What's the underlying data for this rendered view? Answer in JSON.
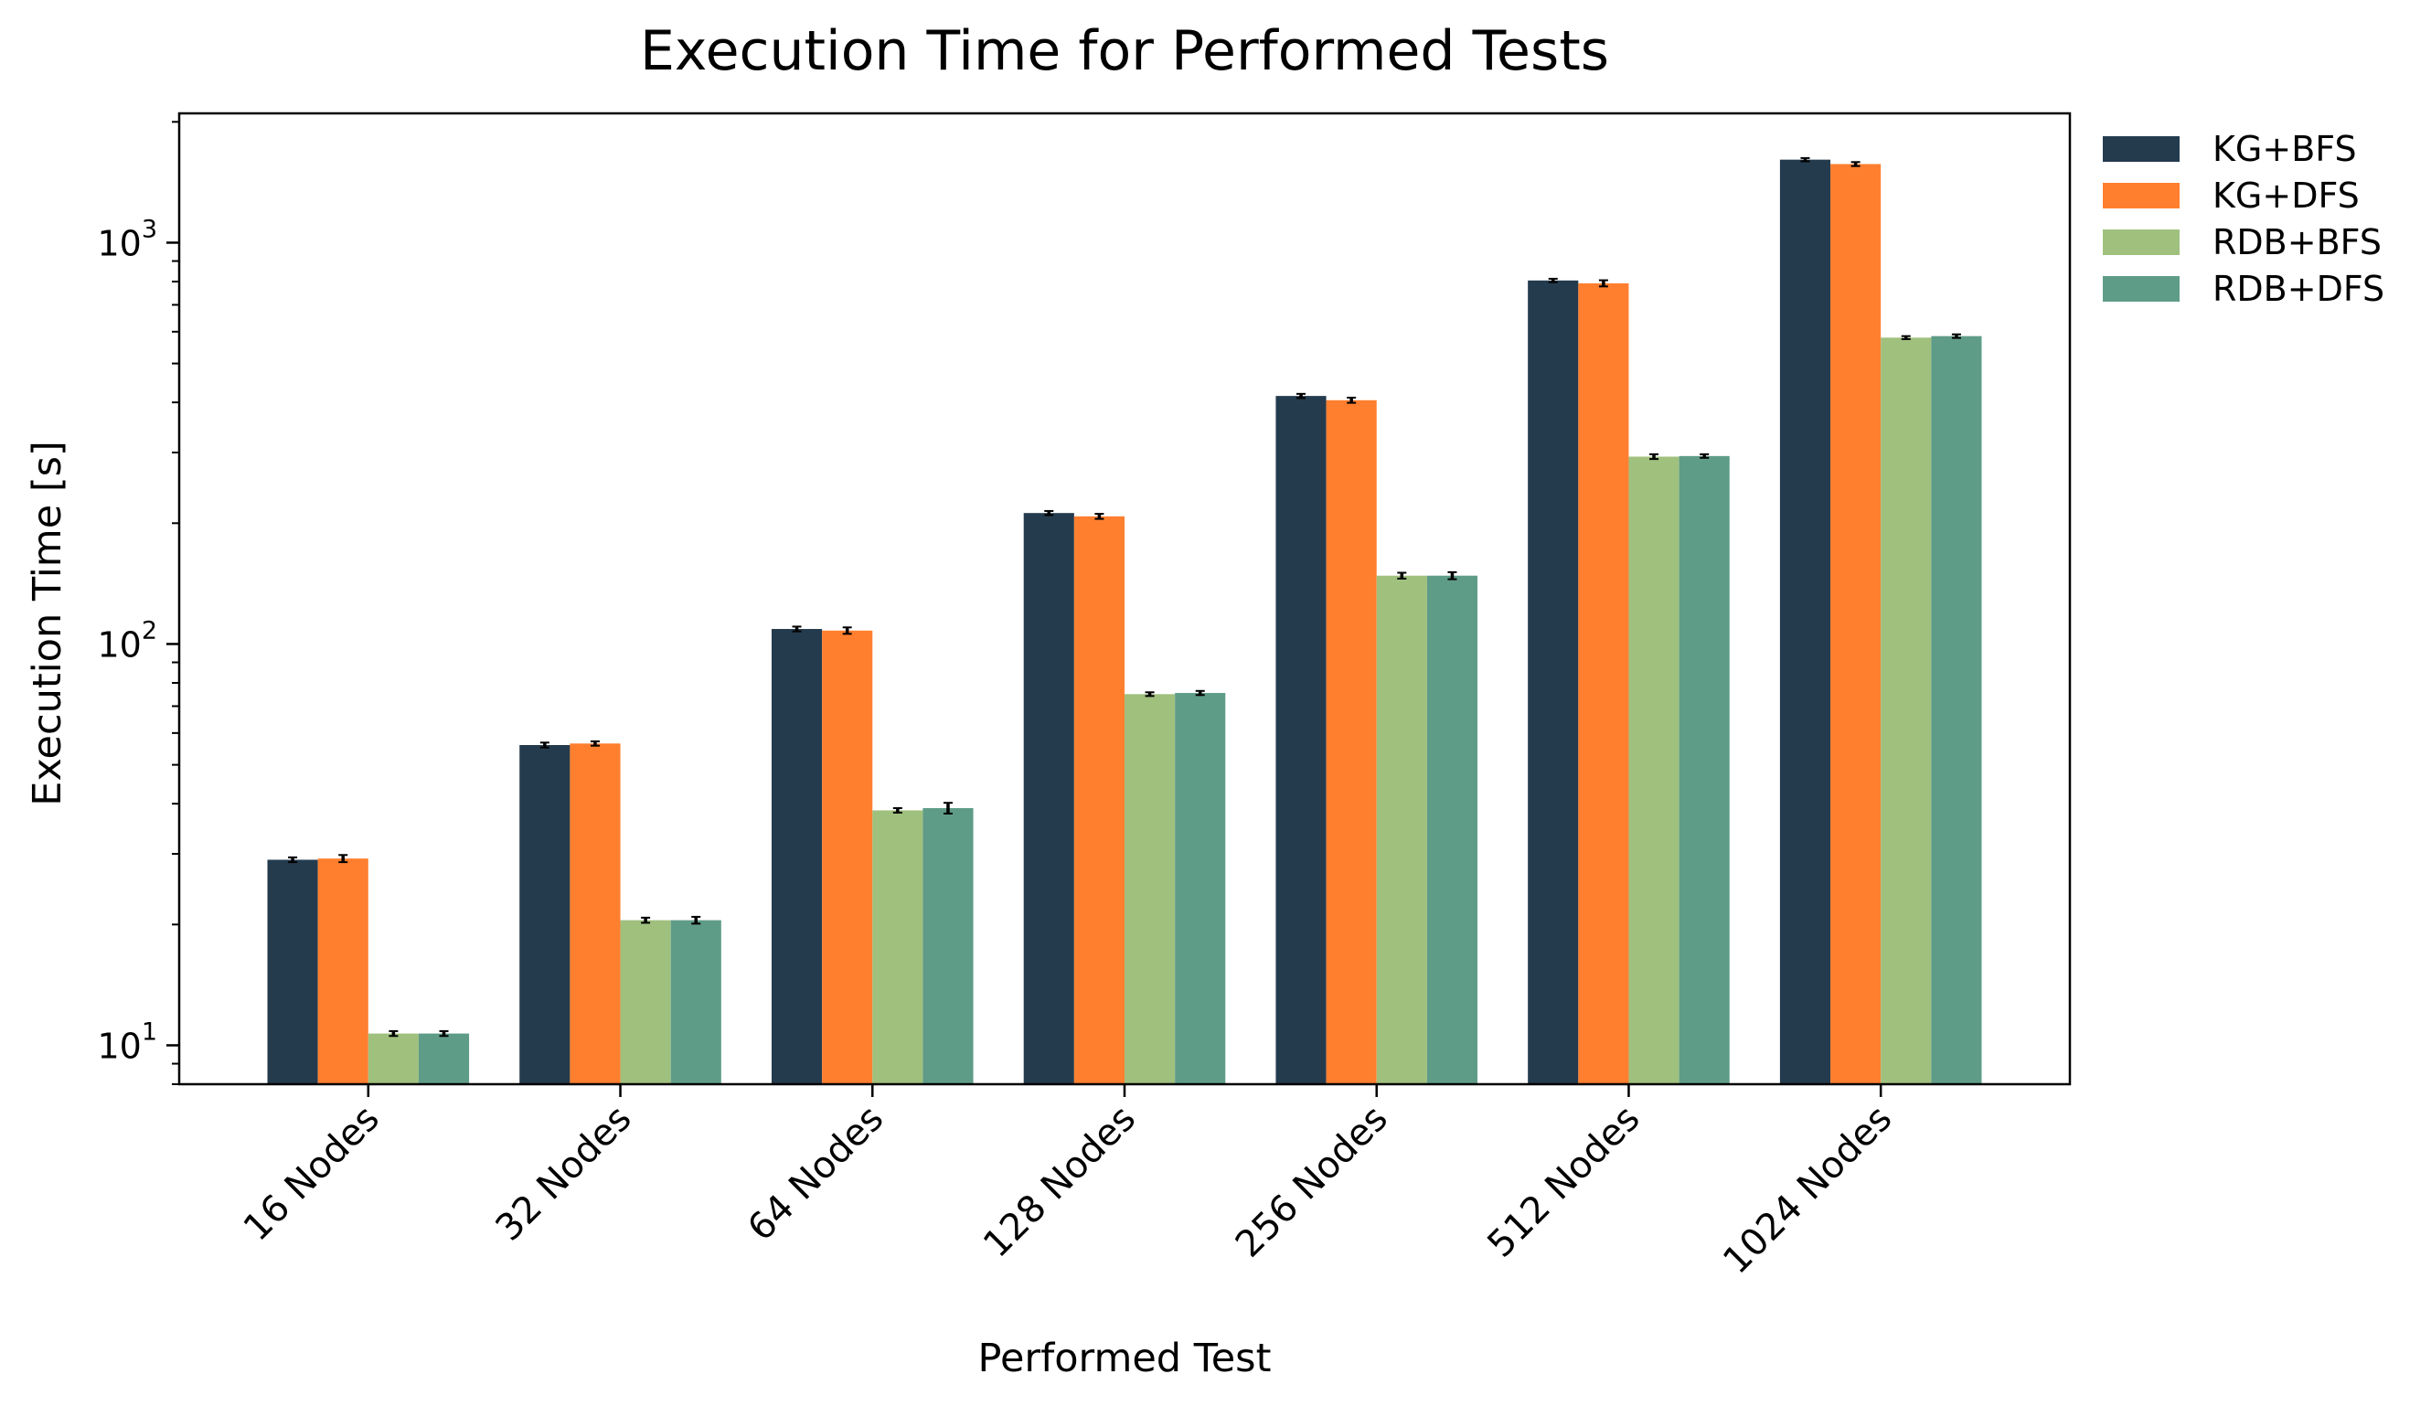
{
  "chart_data": {
    "type": "bar",
    "title": "Execution Time for Performed Tests",
    "xlabel": "Performed Test",
    "ylabel": "Execution Time [s]",
    "yscale": "log",
    "ylim": [
      8,
      2100
    ],
    "yticks": [
      {
        "base": "10",
        "exp": "1",
        "value": 10
      },
      {
        "base": "10",
        "exp": "2",
        "value": 100
      },
      {
        "base": "10",
        "exp": "3",
        "value": 1000
      }
    ],
    "categories": [
      "16 Nodes",
      "32 Nodes",
      "64 Nodes",
      "128 Nodes",
      "256 Nodes",
      "512 Nodes",
      "1024 Nodes"
    ],
    "legend_position": "outside top-right",
    "grid": false,
    "series": [
      {
        "name": "KG+BFS",
        "color": "#243b4e",
        "values": [
          29,
          56,
          109,
          212,
          415,
          805,
          1610
        ],
        "errors": [
          0.4,
          0.8,
          1.5,
          2.5,
          5,
          8,
          15
        ]
      },
      {
        "name": "KG+DFS",
        "color": "#ff7f2f",
        "values": [
          29.2,
          56.5,
          108,
          208,
          405,
          792,
          1570
        ],
        "errors": [
          0.6,
          0.7,
          2,
          3,
          6,
          14,
          18
        ]
      },
      {
        "name": "RDB+BFS",
        "color": "#a0c07e",
        "values": [
          10.7,
          20.5,
          38.5,
          75,
          148,
          293,
          580
        ],
        "errors": [
          0.15,
          0.3,
          0.5,
          0.8,
          2.5,
          4,
          5
        ]
      },
      {
        "name": "RDB+DFS",
        "color": "#5f9c88",
        "values": [
          10.7,
          20.5,
          39,
          75.5,
          148,
          294,
          585
        ],
        "errors": [
          0.15,
          0.4,
          1.2,
          0.9,
          3,
          3,
          6
        ]
      }
    ]
  }
}
